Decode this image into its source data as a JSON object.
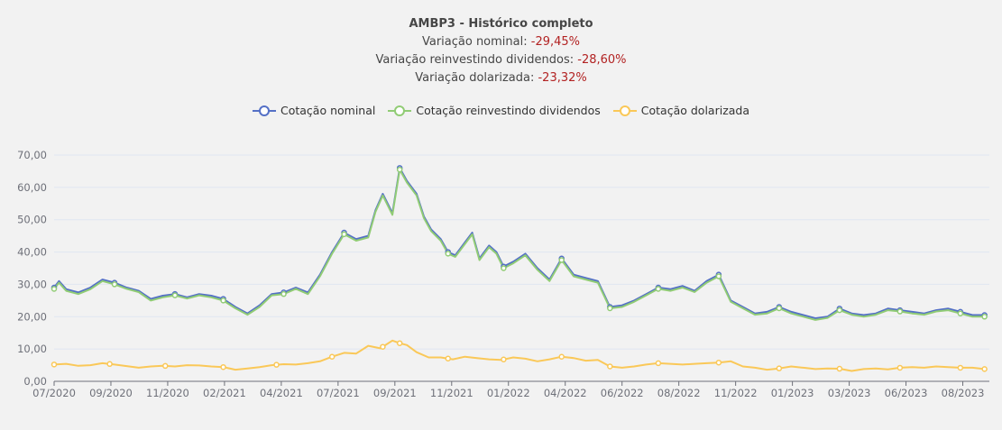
{
  "header": {
    "title": "AMBP3 - Histórico completo",
    "nominal_label": "Variação nominal: ",
    "nominal_value": "-29,45%",
    "dividends_label": "Variação reinvestindo dividendos: ",
    "dividends_value": "-28,60%",
    "dollar_label": "Variação dolarizada: ",
    "dollar_value": "-23,32%"
  },
  "colors": {
    "nominal": "#5470c6",
    "dividends": "#91cc75",
    "dollar": "#fac858",
    "grid": "#e0e6f1",
    "axis": "#6e7079"
  },
  "chart_data": {
    "type": "line",
    "title": "AMBP3 - Histórico completo",
    "xlabel": "",
    "ylabel": "",
    "ylim": [
      0,
      70
    ],
    "yticks": [
      "0,00",
      "10,00",
      "20,00",
      "30,00",
      "40,00",
      "50,00",
      "60,00",
      "70,00"
    ],
    "xticks": [
      "07/2020",
      "09/2020",
      "11/2020",
      "02/2021",
      "04/2021",
      "07/2021",
      "09/2021",
      "11/2021",
      "01/2022",
      "04/2022",
      "06/2022",
      "08/2022",
      "11/2022",
      "01/2023",
      "03/2023",
      "06/2023",
      "08/2023"
    ],
    "x_range": [
      0,
      38.7
    ],
    "legend": [
      "Cotação nominal",
      "Cotação reinvestindo dividendos",
      "Cotação dolarizada"
    ],
    "series": [
      {
        "name": "Cotação nominal",
        "x": [
          0,
          0.2,
          0.5,
          1,
          1.5,
          2,
          2.5,
          3,
          3.5,
          4,
          4.5,
          5,
          5.5,
          6,
          6.5,
          7,
          7.5,
          8,
          8.5,
          9,
          9.5,
          10,
          10.5,
          11,
          11.5,
          12,
          12.5,
          13,
          13.3,
          13.6,
          14,
          14.3,
          14.6,
          15,
          15.3,
          15.6,
          16,
          16.3,
          16.6,
          17,
          17.3,
          17.6,
          18,
          18.3,
          18.6,
          19,
          19.5,
          20,
          20.5,
          21,
          21.5,
          22,
          22.5,
          23,
          23.5,
          24,
          24.5,
          25,
          25.5,
          26,
          26.5,
          27,
          27.5,
          28,
          28.5,
          29,
          29.5,
          30,
          30.5,
          31,
          31.5,
          32,
          32.5,
          33,
          33.5,
          34,
          34.5,
          35,
          35.5,
          36,
          36.5,
          37,
          37.5,
          38,
          38.5
        ],
        "values": [
          29,
          31,
          28.5,
          27.5,
          29,
          31.5,
          30.5,
          29,
          28,
          25.5,
          26.5,
          27,
          26,
          27,
          26.5,
          25.5,
          23,
          21,
          23.5,
          27,
          27.5,
          29,
          27.5,
          33,
          40,
          46,
          44,
          45,
          53,
          58,
          52,
          66,
          62,
          58,
          51,
          47,
          44,
          40,
          39,
          43,
          46,
          38,
          42,
          40,
          35.5,
          37,
          39.5,
          35,
          31.5,
          38,
          33,
          32,
          31,
          23,
          23.5,
          25,
          27,
          29,
          28.5,
          29.5,
          28,
          31,
          33,
          25,
          23,
          21,
          21.5,
          23,
          21.5,
          20.5,
          19.5,
          20,
          22.5,
          21,
          20.5,
          21,
          22.5,
          22,
          21.5,
          21,
          22,
          22.5,
          21.5,
          20.5,
          20.5
        ]
      },
      {
        "name": "Cotação reinvestindo dividendos",
        "x": [
          0,
          0.2,
          0.5,
          1,
          1.5,
          2,
          2.5,
          3,
          3.5,
          4,
          4.5,
          5,
          5.5,
          6,
          6.5,
          7,
          7.5,
          8,
          8.5,
          9,
          9.5,
          10,
          10.5,
          11,
          11.5,
          12,
          12.5,
          13,
          13.3,
          13.6,
          14,
          14.3,
          14.6,
          15,
          15.3,
          15.6,
          16,
          16.3,
          16.6,
          17,
          17.3,
          17.6,
          18,
          18.3,
          18.6,
          19,
          19.5,
          20,
          20.5,
          21,
          21.5,
          22,
          22.5,
          23,
          23.5,
          24,
          24.5,
          25,
          25.5,
          26,
          26.5,
          27,
          27.5,
          28,
          28.5,
          29,
          29.5,
          30,
          30.5,
          31,
          31.5,
          32,
          32.5,
          33,
          33.5,
          34,
          34.5,
          35,
          35.5,
          36,
          36.5,
          37,
          37.5,
          38,
          38.5
        ],
        "values": [
          28.6,
          30.5,
          28,
          27,
          28.5,
          31,
          30,
          28.6,
          27.6,
          25,
          26,
          26.6,
          25.6,
          26.6,
          26,
          25,
          22.6,
          20.6,
          23,
          26.6,
          27,
          28.6,
          27,
          32.5,
          39.5,
          45.5,
          43.5,
          44.5,
          52.5,
          57.5,
          51.5,
          65.5,
          61.5,
          57.5,
          50.5,
          46.5,
          43.5,
          39.5,
          38.5,
          42.5,
          45.5,
          37.5,
          41.5,
          39.5,
          35,
          36.5,
          39,
          34.5,
          31,
          37.5,
          32.5,
          31.5,
          30.5,
          22.6,
          23,
          24.6,
          26.6,
          28.6,
          28,
          29,
          27.6,
          30.5,
          32.5,
          24.6,
          22.6,
          20.6,
          21,
          22.6,
          21,
          20,
          19,
          19.6,
          22,
          20.6,
          20,
          20.6,
          22,
          21.6,
          21,
          20.6,
          21.6,
          22,
          21,
          20,
          20
        ]
      },
      {
        "name": "Cotação dolarizada",
        "x": [
          0,
          0.5,
          1,
          1.5,
          2,
          2.5,
          3,
          3.5,
          4,
          4.5,
          5,
          5.5,
          6,
          6.5,
          7,
          7.5,
          8,
          8.5,
          9,
          9.5,
          10,
          10.5,
          11,
          11.5,
          12,
          12.5,
          13,
          13.5,
          14,
          14.3,
          14.6,
          15,
          15.5,
          16,
          16.5,
          17,
          17.5,
          18,
          18.5,
          19,
          19.5,
          20,
          20.5,
          21,
          21.5,
          22,
          22.5,
          23,
          23.5,
          24,
          24.5,
          25,
          25.5,
          26,
          26.5,
          27,
          27.5,
          28,
          28.5,
          29,
          29.5,
          30,
          30.5,
          31,
          31.5,
          32,
          32.5,
          33,
          33.5,
          34,
          34.5,
          35,
          35.5,
          36,
          36.5,
          37,
          37.5,
          38,
          38.5
        ],
        "values": [
          5.2,
          5.4,
          4.8,
          5,
          5.6,
          5.2,
          4.7,
          4.2,
          4.6,
          4.8,
          4.6,
          5,
          4.9,
          4.6,
          4.4,
          3.6,
          4,
          4.4,
          5,
          5.3,
          5.2,
          5.6,
          6.2,
          7.6,
          8.8,
          8.6,
          11,
          10.2,
          12.6,
          11.8,
          11.2,
          9,
          7.4,
          7.4,
          6.8,
          7.6,
          7.2,
          6.8,
          6.6,
          7.4,
          7,
          6.2,
          6.8,
          7.6,
          7.2,
          6.4,
          6.6,
          4.6,
          4.2,
          4.6,
          5.2,
          5.6,
          5.4,
          5.2,
          5.4,
          5.6,
          5.8,
          6.2,
          4.6,
          4.2,
          3.6,
          4,
          4.6,
          4.2,
          3.8,
          4,
          3.9,
          3.2,
          3.8,
          4,
          3.7,
          4.2,
          4.4,
          4.2,
          4.6,
          4.4,
          4.2,
          4.2,
          3.8
        ]
      }
    ],
    "markers": [
      {
        "series": 0,
        "x": [
          0,
          2.5,
          5,
          7,
          9.5,
          12,
          14.3,
          16.3,
          18.6,
          21,
          23,
          25,
          27.5,
          30,
          32.5,
          35,
          37.5,
          38.5
        ]
      },
      {
        "series": 1,
        "x": [
          0,
          2.5,
          5,
          7,
          9.5,
          12,
          14.3,
          16.3,
          18.6,
          21,
          23,
          25,
          27.5,
          30,
          32.5,
          35,
          37.5,
          38.5
        ]
      },
      {
        "series": 2,
        "x": [
          0,
          2.3,
          4.6,
          7,
          9.2,
          11.5,
          13.6,
          14.3,
          16.3,
          18.6,
          21,
          23,
          25,
          27.5,
          30,
          32.5,
          35,
          37.5,
          38.5
        ]
      }
    ]
  }
}
